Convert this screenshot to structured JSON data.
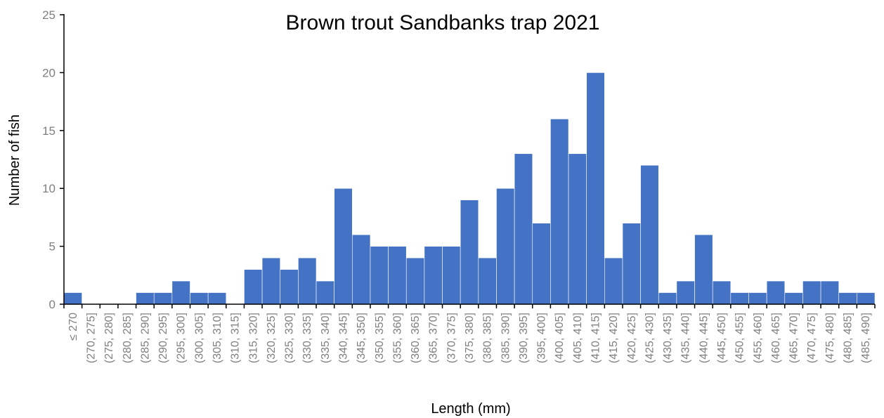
{
  "chart_data": {
    "type": "bar",
    "title": "Brown trout Sandbanks trap 2021",
    "xlabel": "Length (mm)",
    "ylabel": "Number of fish",
    "ylim": [
      0,
      25
    ],
    "yticks": [
      "0",
      "5",
      "10",
      "15",
      "20",
      "25"
    ],
    "grid": false,
    "bar_color": "#4472c4",
    "categories": [
      "≤ 270",
      "(270, 275]",
      "(275, 280]",
      "(280, 285]",
      "(285, 290]",
      "(290, 295]",
      "(295, 300]",
      "(300, 305]",
      "(305, 310]",
      "(310, 315]",
      "(315, 320]",
      "(320, 325]",
      "(325, 330]",
      "(330, 335]",
      "(335, 340]",
      "(340, 345]",
      "(345, 350]",
      "(350, 355]",
      "(355, 360]",
      "(360, 365]",
      "(365, 370]",
      "(370, 375]",
      "(375, 380]",
      "(380, 385]",
      "(385, 390]",
      "(390, 395]",
      "(395, 400]",
      "(400, 405]",
      "(405, 410]",
      "(410, 415]",
      "(415, 420]",
      "(420, 425]",
      "(425, 430]",
      "(430, 435]",
      "(435, 440]",
      "(440, 445]",
      "(445, 450]",
      "(450, 455]",
      "(455, 460]",
      "(460, 465]",
      "(465, 470]",
      "(470, 475]",
      "(475, 480]",
      "(480, 485]",
      "(485, 490]"
    ],
    "values": [
      1,
      0,
      0,
      0,
      1,
      1,
      2,
      1,
      1,
      0,
      3,
      4,
      3,
      4,
      2,
      10,
      6,
      5,
      5,
      4,
      5,
      5,
      9,
      4,
      10,
      13,
      7,
      16,
      13,
      20,
      4,
      7,
      12,
      1,
      2,
      6,
      2,
      1,
      1,
      2,
      1,
      2,
      2,
      1,
      1
    ]
  }
}
